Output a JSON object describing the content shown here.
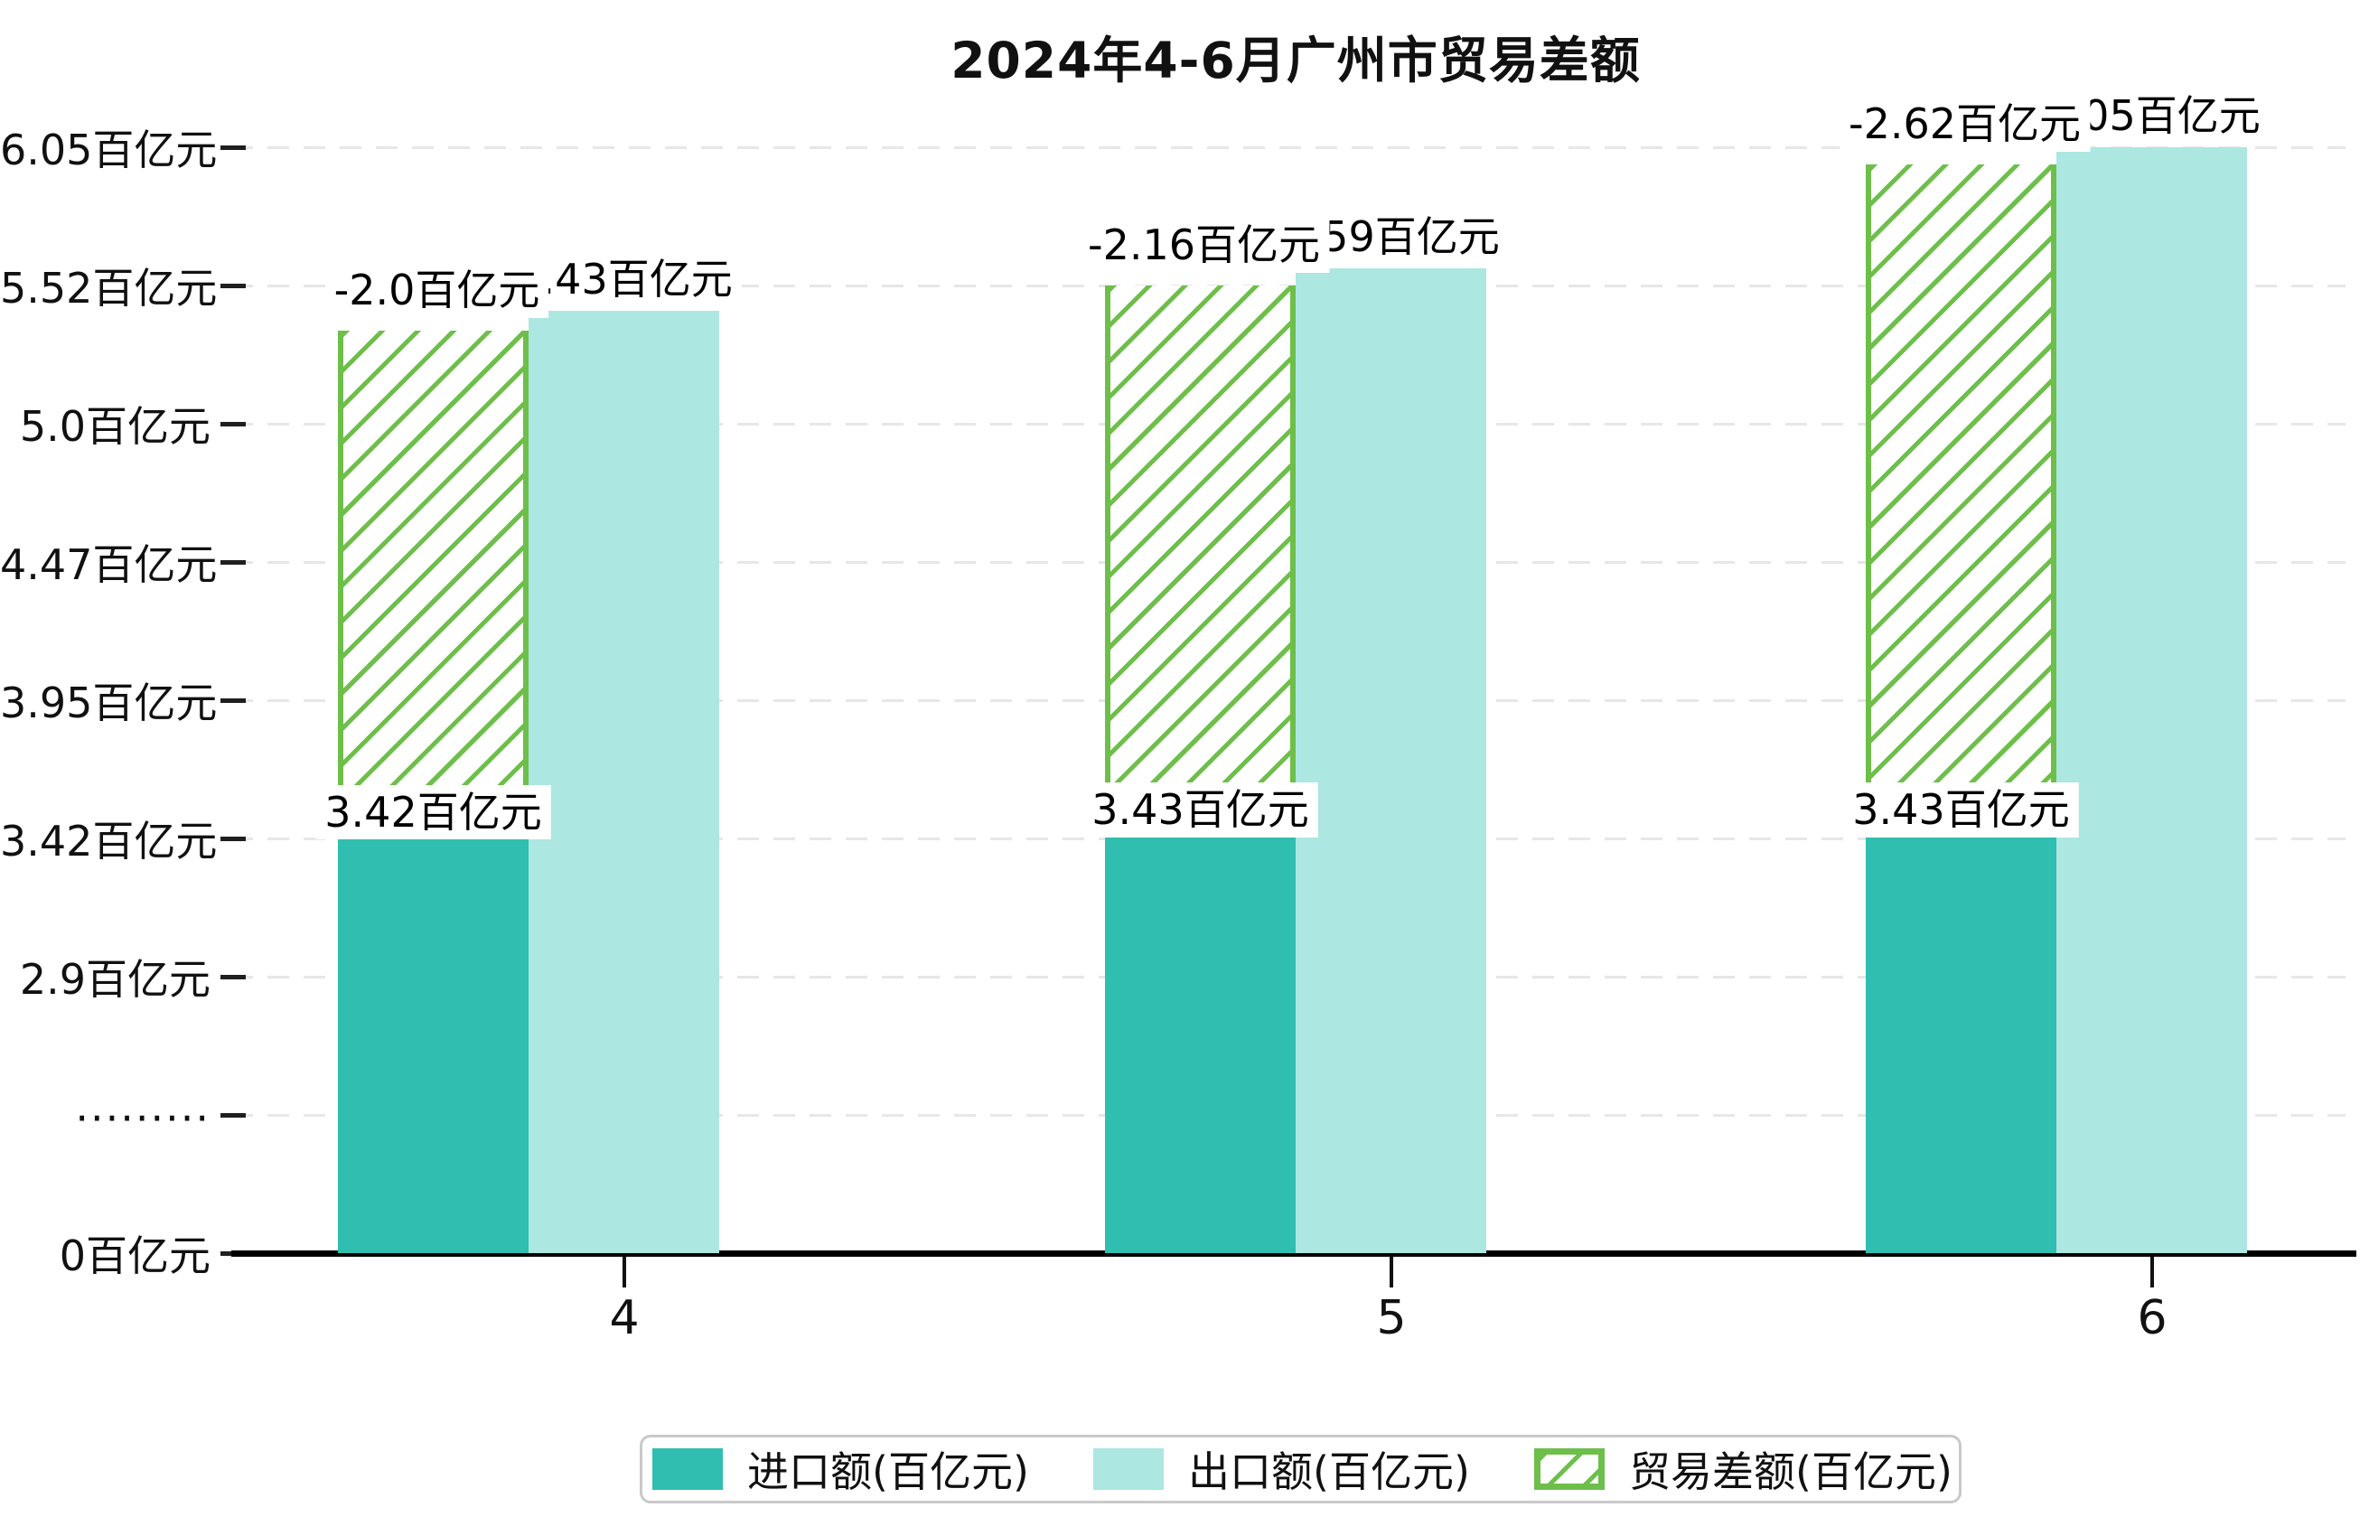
{
  "title": "2024年4-6月广州市贸易差额",
  "chart_data": {
    "type": "bar",
    "title": "2024年4-6月广州市贸易差额",
    "categories": [
      "4",
      "5",
      "6"
    ],
    "series": [
      {
        "name": "进口额(百亿元)",
        "values": [
          3.42,
          3.43,
          3.43
        ],
        "data_labels": [
          "3.42百亿元",
          "3.43百亿元",
          "3.43百亿元"
        ],
        "color": "#2fbeb0",
        "style": "solid"
      },
      {
        "name": "出口额(百亿元)",
        "values": [
          5.43,
          5.59,
          6.05
        ],
        "data_labels": [
          "5.43百亿元",
          "5.59百亿元",
          "6.05百亿元"
        ],
        "color": "#ace7e1",
        "style": "solid"
      },
      {
        "name": "贸易差额(百亿元)",
        "values": [
          -2.0,
          -2.16,
          -2.62
        ],
        "data_labels": [
          "-2.0百亿元",
          "-2.16百亿元",
          "-2.62百亿元"
        ],
        "color": "#6dbf4a",
        "style": "hatched-outline"
      }
    ],
    "y_axis": {
      "unit": "百亿元",
      "tick_labels": [
        "0百亿元",
        ".........",
        "2.9百亿元",
        "3.42百亿元",
        "3.95百亿元",
        "4.47百亿元",
        "5.0百亿元",
        "5.52百亿元",
        "6.05百亿元"
      ],
      "tick_values": [
        0,
        null,
        2.9,
        3.42,
        3.95,
        4.47,
        5.0,
        5.52,
        6.05
      ],
      "broken_axis": true
    },
    "x_axis": {
      "tick_labels": [
        "4",
        "5",
        "6"
      ]
    },
    "grid": "horizontal-dashed",
    "legend_position": "bottom",
    "colors": {
      "import": "#2fbeb0",
      "export": "#ace7e1",
      "balance_hatch": "#6dbf4a",
      "gridline": "#e7e7e7",
      "axis": "#000000",
      "legend_border": "#c9c9c9"
    }
  }
}
